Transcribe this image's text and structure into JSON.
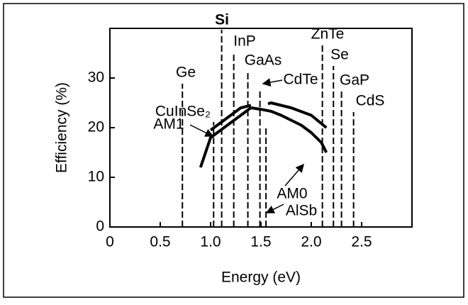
{
  "chart_data": {
    "type": "line",
    "xlabel": "Energy (eV)",
    "ylabel": "Efficiency (%)",
    "xlim": [
      0,
      3
    ],
    "ylim": [
      0,
      40
    ],
    "xticks": [
      0,
      0.5,
      {
        "value": 1,
        "label": "1.0"
      },
      1.5,
      {
        "value": 2,
        "label": "2.0"
      },
      2.5
    ],
    "yticks": [
      0,
      10,
      20,
      30
    ],
    "series": [
      {
        "name": "AM0",
        "color": "#000000",
        "x": [
          0.9,
          0.95,
          1.0,
          1.1,
          1.2,
          1.3,
          1.4,
          1.5,
          1.6,
          1.7,
          1.8,
          1.9,
          2.0,
          2.1,
          2.15
        ],
        "values": [
          12,
          15,
          18,
          19.5,
          21,
          22.5,
          24,
          23.7,
          23.3,
          22.5,
          21.5,
          20.5,
          19,
          17,
          15
        ]
      },
      {
        "name": "AM1",
        "color": "#000000",
        "x": [
          1.0,
          1.1,
          1.2,
          1.3,
          1.4,
          null,
          1.57,
          1.6,
          1.8,
          2.0,
          2.15
        ],
        "values": [
          19.5,
          21,
          22.5,
          24,
          24.5,
          null,
          24.8,
          25,
          24,
          22.5,
          20
        ]
      }
    ],
    "materials": [
      {
        "label": "Ge",
        "x": 0.72
      },
      {
        "label": "CuInSe₂",
        "x": 1.03
      },
      {
        "label": "Si",
        "x": 1.11
      },
      {
        "label": "InP",
        "x": 1.23
      },
      {
        "label": "GaAs",
        "x": 1.37
      },
      {
        "label": "CdTe",
        "x": 1.49
      },
      {
        "label": "AlSb",
        "x": 1.55
      },
      {
        "label": "ZnTe",
        "x": 2.11
      },
      {
        "label": "Se",
        "x": 2.22
      },
      {
        "label": "GaP",
        "x": 2.3
      },
      {
        "label": "CdS",
        "x": 2.42
      }
    ]
  }
}
